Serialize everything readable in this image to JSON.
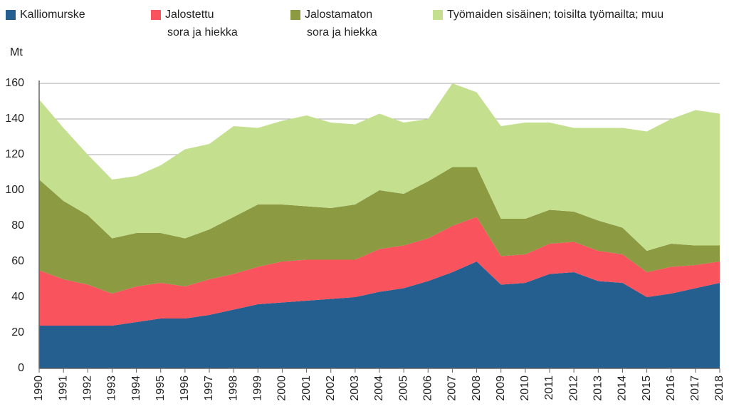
{
  "chart_data": {
    "type": "stacked_area",
    "y_label": "Mt",
    "categories": [
      "1990",
      "1991",
      "1992",
      "1993",
      "1994",
      "1995",
      "1996",
      "1997",
      "1998",
      "1999",
      "2000",
      "2001",
      "2002",
      "2003",
      "2004",
      "2005",
      "2006",
      "2007",
      "2008",
      "2009",
      "2010",
      "2011",
      "2012",
      "2013",
      "2014",
      "2015",
      "2016",
      "2017",
      "2018"
    ],
    "series": [
      {
        "name": "Kalliomurske",
        "color": "#245f8f",
        "values": [
          24,
          24,
          24,
          24,
          26,
          28,
          28,
          30,
          33,
          36,
          37,
          38,
          39,
          40,
          43,
          45,
          49,
          54,
          60,
          47,
          48,
          53,
          54,
          49,
          48,
          40,
          42,
          45,
          48
        ]
      },
      {
        "name": "Jalostettu\nsora ja hiekka",
        "color": "#f9535d",
        "values": [
          31,
          26,
          23,
          18,
          20,
          20,
          18,
          20,
          20,
          21,
          23,
          23,
          22,
          21,
          24,
          24,
          24,
          26,
          25,
          16,
          16,
          17,
          17,
          17,
          16,
          14,
          15,
          13,
          12
        ]
      },
      {
        "name": "Jalostamaton\nsora ja hiekka",
        "color": "#8c9a42",
        "values": [
          51,
          44,
          39,
          31,
          30,
          28,
          27,
          28,
          32,
          35,
          32,
          30,
          29,
          31,
          33,
          29,
          32,
          33,
          28,
          21,
          20,
          19,
          17,
          17,
          15,
          12,
          13,
          11,
          9
        ]
      },
      {
        "name": "Työmaiden sisäinen; toisilta työmailta; muu",
        "color": "#c4e08f",
        "values": [
          45,
          41,
          34,
          33,
          32,
          38,
          50,
          48,
          51,
          43,
          47,
          51,
          48,
          45,
          43,
          40,
          35,
          47,
          42,
          52,
          54,
          49,
          47,
          52,
          56,
          67,
          70,
          76,
          74
        ]
      }
    ],
    "ylim": [
      0,
      160
    ],
    "yticks": [
      0,
      20,
      40,
      60,
      80,
      100,
      120,
      140,
      160
    ],
    "grid": true
  }
}
